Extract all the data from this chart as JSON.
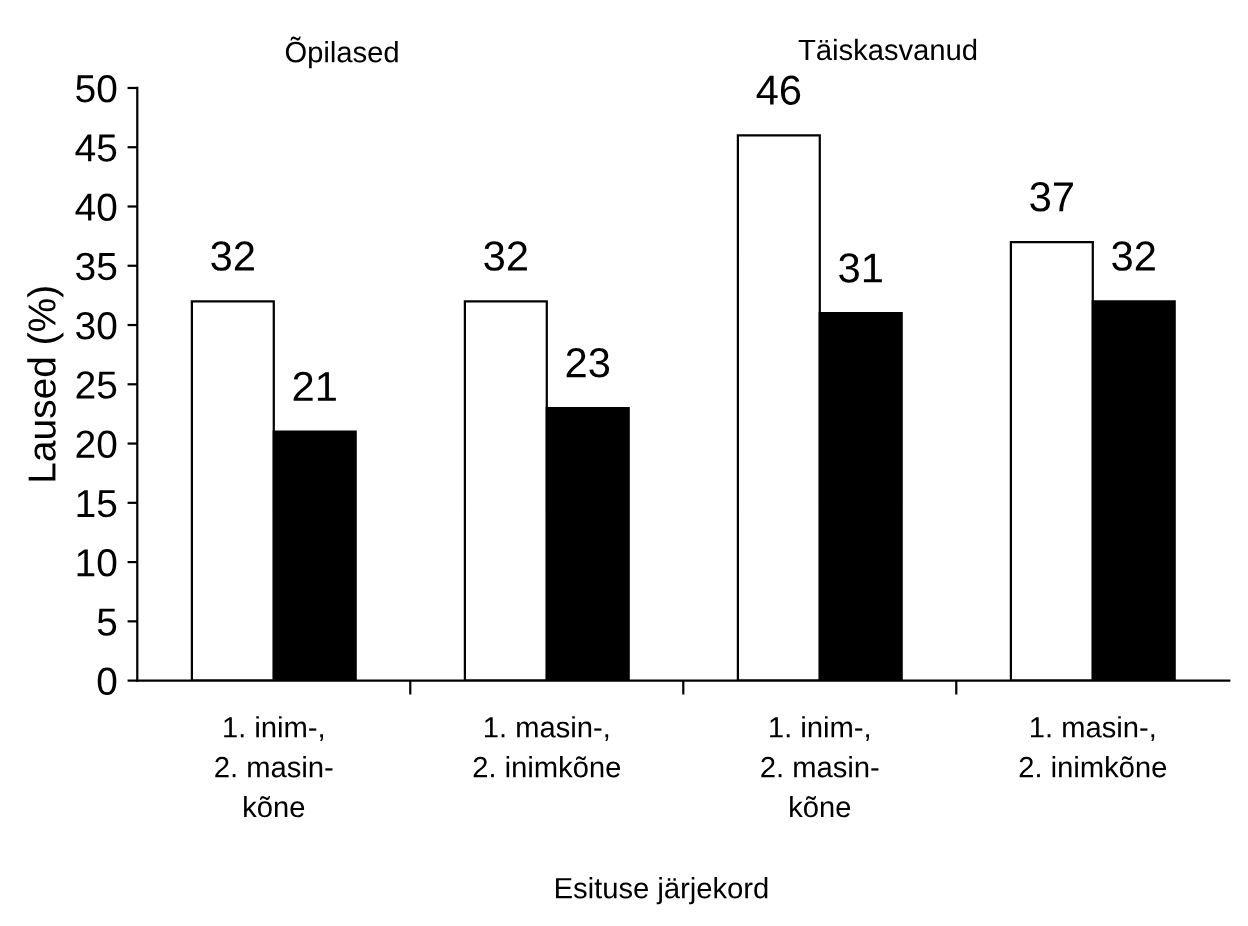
{
  "chart_data": {
    "type": "bar",
    "xlabel": "Esituse järjekord",
    "ylabel": "Laused (%)",
    "categories": [
      "1. inim-,\n2. masin-\nkõne",
      "1. masin-,\n2. inimkõne",
      "1. inim-,\n2. masin-\nkõne",
      "1. masin-,\n2. inimkõne"
    ],
    "series": [
      {
        "color": "#ffffff",
        "values": [
          32,
          32,
          46,
          37
        ]
      },
      {
        "color": "#000000",
        "values": [
          21,
          23,
          31,
          32
        ]
      }
    ],
    "ylim": [
      0,
      50
    ],
    "yticks": [
      0,
      5,
      10,
      15,
      20,
      25,
      30,
      35,
      40,
      45,
      50
    ],
    "data_labels": true,
    "grid": false,
    "legend": false,
    "annotations": [
      "Õpilased",
      "Täiskasvanud"
    ]
  }
}
